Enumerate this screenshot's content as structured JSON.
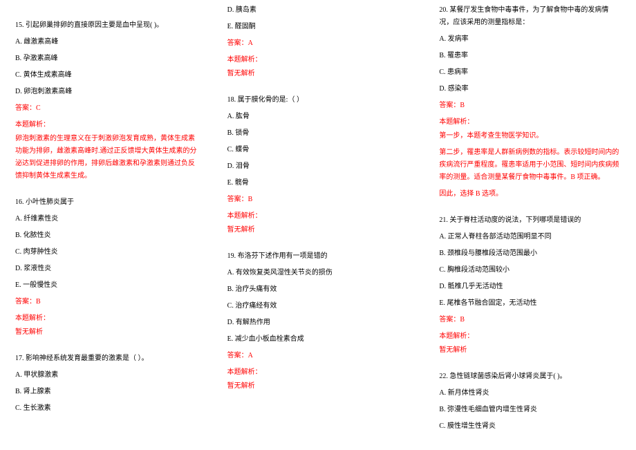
{
  "colors": {
    "text": "#000000",
    "accent": "#ff0000",
    "background": "#ffffff"
  },
  "typography": {
    "font_family": "SimSun",
    "font_size_pt": 8,
    "line_height": 1.8
  },
  "labels": {
    "answer_prefix": "答案：",
    "analysis_label": "本题解析：",
    "no_analysis": "暂无解析"
  },
  "columns": [
    {
      "items": [
        {
          "type": "spacer",
          "size": "lg"
        },
        {
          "type": "stem",
          "text": "15.  引起卵巢排卵的直接原因主要是血中呈现(  )。"
        },
        {
          "type": "option",
          "text": "A. 雌激素高峰"
        },
        {
          "type": "option",
          "text": "B. 孕激素高峰"
        },
        {
          "type": "option",
          "text": "C. 黄体生成素高峰"
        },
        {
          "type": "option",
          "text": "D. 卵泡刺激素高峰"
        },
        {
          "type": "answer",
          "text": "答案：C"
        },
        {
          "type": "analysis-label",
          "text": "本题解析："
        },
        {
          "type": "analysis-body",
          "text": "卵泡刺激素的生理意义在于刺激卵泡发育成熟，黄体生成素功能为排卵，雌激素高峰时.通过正反馈增大黄体生成素的分泌达到促进排卵的作用，排卵后雌激素和孕激素则通过负反馈抑制黄体生成素生成。"
        },
        {
          "type": "spacer",
          "size": "md"
        },
        {
          "type": "stem",
          "text": "16. 小叶性肺炎属于"
        },
        {
          "type": "option",
          "text": "A. 纤维素性炎"
        },
        {
          "type": "option",
          "text": "B. 化脓性炎"
        },
        {
          "type": "option",
          "text": "C. 肉芽肿性炎"
        },
        {
          "type": "option",
          "text": "D. 浆液性炎"
        },
        {
          "type": "option",
          "text": "E. 一般慢性炎"
        },
        {
          "type": "answer",
          "text": "答案：B"
        },
        {
          "type": "analysis-label",
          "text": "本题解析："
        },
        {
          "type": "analysis-body",
          "text": "暂无解析"
        },
        {
          "type": "spacer",
          "size": "md"
        },
        {
          "type": "stem",
          "text": "17.  影响神经系统发育最重要的激素是（ ）。"
        },
        {
          "type": "option",
          "text": "A. 甲状腺激素"
        },
        {
          "type": "option",
          "text": "B. 肾上腺素"
        },
        {
          "type": "option",
          "text": "C. 生长激素"
        }
      ]
    },
    {
      "items": [
        {
          "type": "option",
          "text": "D. 胰岛素"
        },
        {
          "type": "option",
          "text": "E. 醛固酮"
        },
        {
          "type": "answer",
          "text": "答案：A"
        },
        {
          "type": "analysis-label",
          "text": "本题解析："
        },
        {
          "type": "analysis-body",
          "text": "暂无解析"
        },
        {
          "type": "spacer",
          "size": "md"
        },
        {
          "type": "stem",
          "text": "18. 属于膜化骨的是:（ ）"
        },
        {
          "type": "option",
          "text": "A. 肱骨"
        },
        {
          "type": "option",
          "text": "B. 锁骨"
        },
        {
          "type": "option",
          "text": "C. 蝶骨"
        },
        {
          "type": "option",
          "text": "D. 泪骨"
        },
        {
          "type": "option",
          "text": "E. 髋骨"
        },
        {
          "type": "answer",
          "text": "答案：B"
        },
        {
          "type": "analysis-label",
          "text": "本题解析："
        },
        {
          "type": "analysis-body",
          "text": "暂无解析"
        },
        {
          "type": "spacer",
          "size": "md"
        },
        {
          "type": "stem",
          "text": "19. 布洛芬下述作用有一项是错的"
        },
        {
          "type": "option",
          "text": "A. 有效恢复类风湿性关节炎的损伤"
        },
        {
          "type": "option",
          "text": "B. 治疗头痛有效"
        },
        {
          "type": "option",
          "text": "C. 治疗痛经有效"
        },
        {
          "type": "option",
          "text": "D. 有解热作用"
        },
        {
          "type": "option",
          "text": "E. 减少血小板血栓素合成"
        },
        {
          "type": "answer",
          "text": "答案：A"
        },
        {
          "type": "analysis-label",
          "text": "本题解析："
        },
        {
          "type": "analysis-body",
          "text": "暂无解析"
        }
      ]
    },
    {
      "items": [
        {
          "type": "stem",
          "text": "20. 某餐厅发生食物中毒事件，为了解食物中毒的发病情况，应该采用的测量指标是："
        },
        {
          "type": "option",
          "text": "A. 发病率"
        },
        {
          "type": "option",
          "text": "B. 罹患率"
        },
        {
          "type": "option",
          "text": "C. 患病率"
        },
        {
          "type": "option",
          "text": "D. 感染率"
        },
        {
          "type": "answer",
          "text": "答案：B"
        },
        {
          "type": "analysis-label",
          "text": "本题解析："
        },
        {
          "type": "analysis-body",
          "text": "第一步，本题考查生物医学知识。"
        },
        {
          "type": "analysis-body",
          "text": "第二步，罹患率是人群新病例数的指标。表示较短时间内的疾病流行严重程度。罹患率适用于小范围、短时间内疾病频率的测量。适合测量某餐厅食物中毒事件。B 项正确。"
        },
        {
          "type": "analysis-body",
          "text": "因此，选择 B 选项。"
        },
        {
          "type": "spacer",
          "size": "md"
        },
        {
          "type": "stem",
          "text": "21. 关于脊柱活动度的说法，下列哪项是错误的"
        },
        {
          "type": "option",
          "text": "A. 正常人脊柱各部活动范围明显不同"
        },
        {
          "type": "option",
          "text": "B. 颈椎段与腰椎段活动范围最小"
        },
        {
          "type": "option",
          "text": "C. 胸椎段活动范围较小"
        },
        {
          "type": "option",
          "text": "D. 骶椎几乎无活动性"
        },
        {
          "type": "option",
          "text": "E. 尾椎各节融合固定，无活动性"
        },
        {
          "type": "answer",
          "text": "答案：B"
        },
        {
          "type": "analysis-label",
          "text": "本题解析："
        },
        {
          "type": "analysis-body",
          "text": "暂无解析"
        },
        {
          "type": "spacer",
          "size": "md"
        },
        {
          "type": "stem",
          "text": "22. 急性链球菌感染后肾小球肾炎属于(  )。"
        },
        {
          "type": "option",
          "text": "A. 新月体性肾炎"
        },
        {
          "type": "option",
          "text": "B. 弥漫性毛细血管内增生性肾炎"
        },
        {
          "type": "option",
          "text": "C. 膜性增生性肾炎"
        }
      ]
    }
  ]
}
